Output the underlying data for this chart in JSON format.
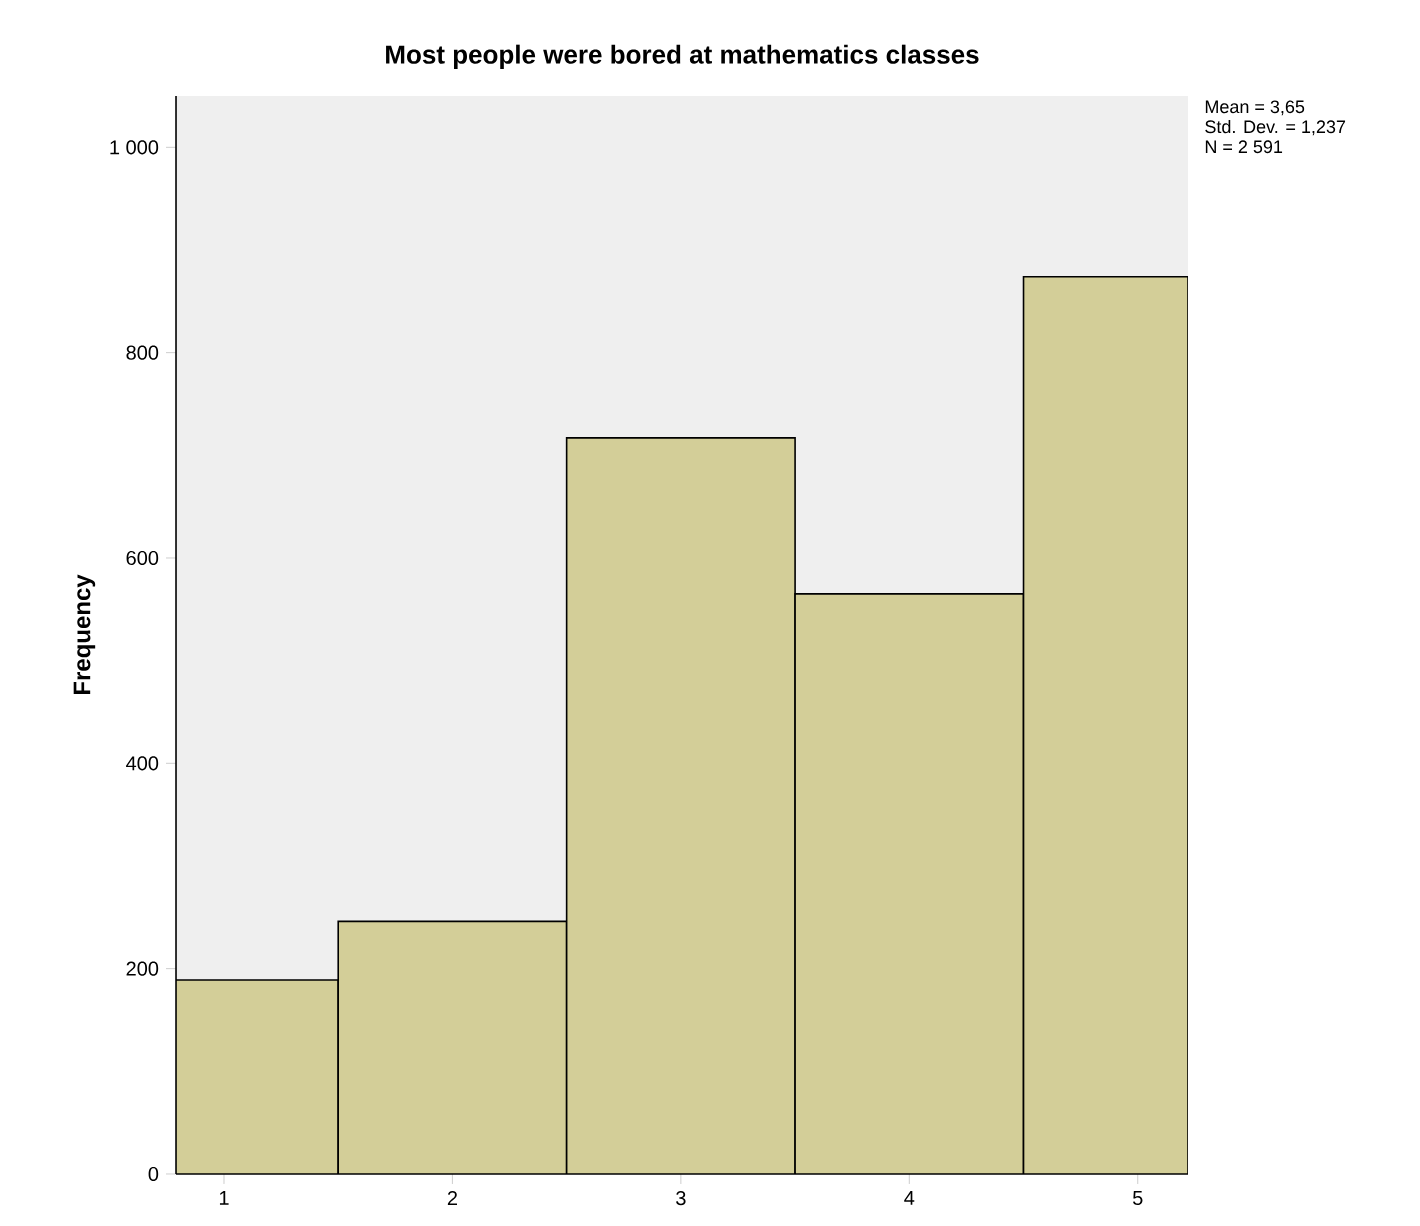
{
  "chart_data": {
    "type": "histogram",
    "title": "Most people were bored at mathematics classes",
    "ylabel": "Frequency",
    "bins": [
      0.79,
      1.5,
      2.5,
      3.5,
      4.5,
      5.22
    ],
    "values": [
      189,
      246,
      717,
      565,
      874
    ],
    "color": "#d3ce98",
    "xlim": [
      0.79,
      5.22
    ],
    "xticks": [
      1,
      2,
      3,
      4,
      5
    ],
    "ylim": [
      0,
      1050
    ],
    "yticks": [
      0,
      200,
      400,
      600,
      800,
      {
        "value": 1000,
        "label": "1 000"
      }
    ],
    "grid": false,
    "annotations": [
      "Mean = 3,65",
      "Std. Dev. = 1,237",
      "N = 2 591"
    ]
  }
}
